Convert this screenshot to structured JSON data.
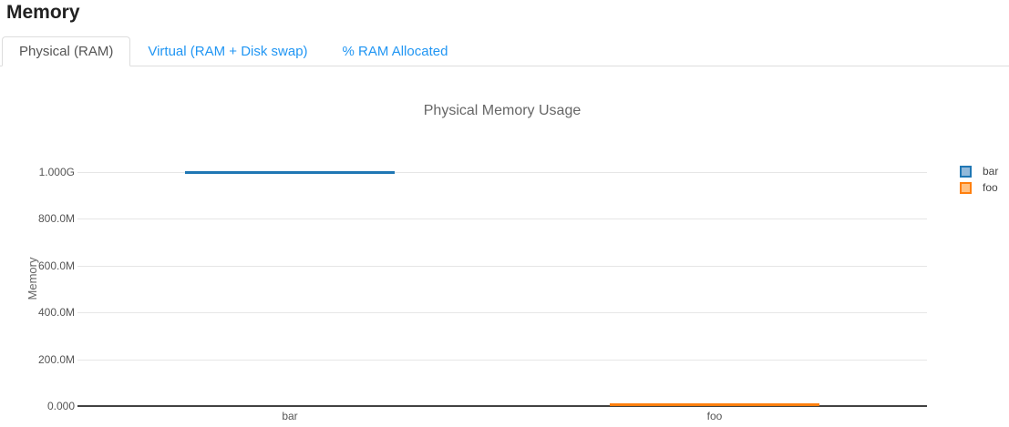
{
  "header": {
    "title": "Memory"
  },
  "tabs": {
    "items": [
      {
        "label": "Physical (RAM)",
        "active": true
      },
      {
        "label": "Virtual (RAM + Disk swap)",
        "active": false
      },
      {
        "label": "% RAM Allocated",
        "active": false
      }
    ]
  },
  "chart_data": {
    "type": "bar",
    "title": "Physical Memory Usage",
    "ylabel": "Memory",
    "xlabel": "",
    "categories": [
      "bar",
      "foo"
    ],
    "series": [
      {
        "name": "bar",
        "category": "bar",
        "value_bytes": 1000000000,
        "color": "#1f77b4",
        "legend_fill": "#92b9da"
      },
      {
        "name": "foo",
        "category": "foo",
        "value_bytes": 8000000,
        "color": "#ff7f0e",
        "legend_fill": "#ffc183"
      }
    ],
    "y_ticks": [
      {
        "label": "0.000",
        "value_bytes": 0
      },
      {
        "label": "200.0M",
        "value_bytes": 200000000
      },
      {
        "label": "400.0M",
        "value_bytes": 400000000
      },
      {
        "label": "600.0M",
        "value_bytes": 600000000
      },
      {
        "label": "800.0M",
        "value_bytes": 800000000
      },
      {
        "label": "1.000G",
        "value_bytes": 1000000000
      }
    ],
    "ylim_bytes": [
      0,
      1050000000
    ],
    "grid": true,
    "legend_position": "right",
    "legend_entries": [
      "bar",
      "foo"
    ],
    "bar_style": "flat top segment, no fill"
  },
  "colors": {
    "tab_link": "#2196f3",
    "active_tab_text": "#555555",
    "tab_border": "#dddddd",
    "gridline": "#e6e6e6",
    "axis_line": "#424242",
    "series_bar": "#1f77b4",
    "series_foo": "#ff7f0e",
    "title_text": "#666666",
    "heading_text": "#212121"
  }
}
